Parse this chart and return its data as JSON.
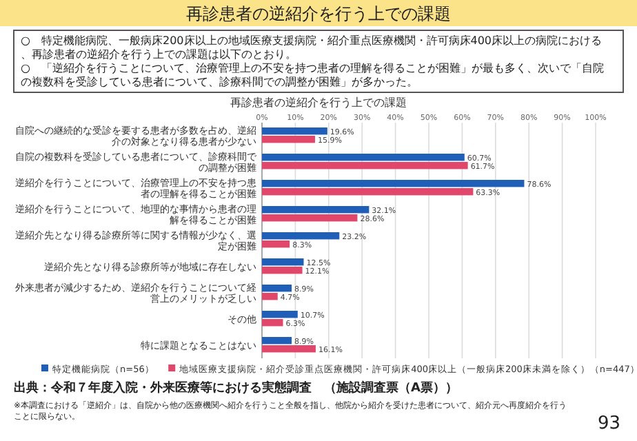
{
  "chart_data": {
    "type": "bar",
    "orientation": "horizontal",
    "title": "再診患者の逆紹介を行う上での課題",
    "subtitle": "再診患者の逆紹介を行う上での課題",
    "categories": [
      "自院への継続的な受診を要する患者が多数を占め、逆紹介の対象となり得る患者が少ない",
      "自院の複数科を受診している患者について、診療科間での調整が困難",
      "逆紹介を行うことについて、治療管理上の不安を持つ患者の理解を得ることが困難",
      "逆紹介を行うことについて、地理的な事情から患者の理解を得ることが困難",
      "逆紹介先となり得る診療所等に関する情報が少なく、選定が困難",
      "逆紹介先となり得る診療所等が地域に存在しない",
      "外来患者が減少するため、逆紹介を行うことについて経営上のメリットが乏しい",
      "その他",
      "特に課題となることはない"
    ],
    "series": [
      {
        "name": "特定機能病院（n=56）",
        "color": "#1f5fb8",
        "values": [
          19.6,
          60.7,
          78.6,
          32.1,
          23.2,
          12.5,
          8.9,
          10.7,
          8.9
        ],
        "value_labels": [
          "19.6%",
          "60.7%",
          "78.6%",
          "32.1%",
          "23.2%",
          "12.5%",
          "8.9%",
          "10.7%",
          "8.9%"
        ]
      },
      {
        "name": "地域医療支援病院・紹介受診重点医療機関・許可病床400床以上（一般病床200床未満を除く）（n=447）",
        "color": "#e0476b",
        "values": [
          15.9,
          61.7,
          63.3,
          28.6,
          8.3,
          12.1,
          4.7,
          6.3,
          16.1
        ],
        "value_labels": [
          "15.9%",
          "61.7%",
          "63.3%",
          "28.6%",
          "8.3%",
          "12.1%",
          "4.7%",
          "6.3%",
          "16.1%"
        ]
      }
    ],
    "xlim": [
      0,
      100
    ],
    "xticks": [
      {
        "value": 0,
        "label": "0%"
      },
      {
        "value": 10,
        "label": "10%"
      },
      {
        "value": 20,
        "label": "20%"
      },
      {
        "value": 30,
        "label": "30%"
      },
      {
        "value": 40,
        "label": "40%"
      },
      {
        "value": 50,
        "label": "50%"
      },
      {
        "value": 60,
        "label": "60%"
      },
      {
        "value": 70,
        "label": "70%"
      },
      {
        "value": 80,
        "label": "80%"
      },
      {
        "value": 90,
        "label": "90%"
      },
      {
        "value": 100,
        "label": "100%"
      }
    ],
    "grid": "x",
    "legend": "bottom",
    "annotations": [
      "○　特定機能病院、一般病床200床以上の地域医療支援病院・紹介重点医療機関・許可病床400床以上の病院における、再診患者の逆紹介を行う上での課題は以下のとおり。",
      "○　「逆紹介を行うことについて、治療管理上の不安を持つ患者の理解を得ることが困難」が最も多く、次いで「自院の複数科を受診している患者について、診療科間での調整が困難」が多かった。",
      "出典：令和７年度入院・外来医療等における実態調査　（施設調査票（A票））",
      "※本調査における「逆紹介」は、自院から他の医療機関へ紹介を行うこと全般を指し、他院から紹介を受けた患者について、紹介元へ再度紹介を行うことに限らない。",
      "93"
    ]
  }
}
